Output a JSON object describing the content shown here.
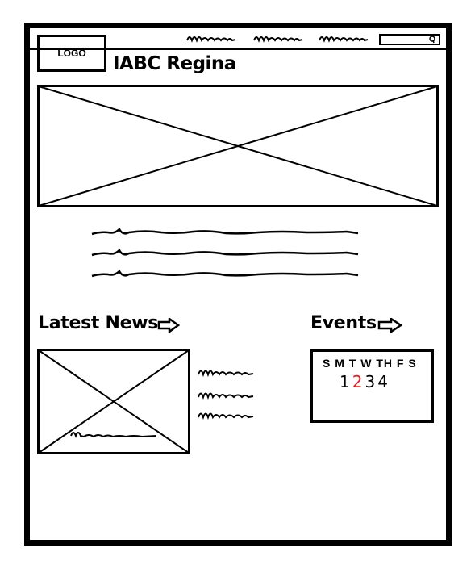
{
  "header": {
    "logo_label": "LOGO",
    "site_title": "IABC Regina",
    "nav_items": [
      "nav-link-1",
      "nav-link-2",
      "nav-link-3"
    ],
    "search_icon": "search-icon"
  },
  "hero": {
    "image": "image-placeholder"
  },
  "intro": {
    "lines": 3
  },
  "news": {
    "title": "Latest News",
    "arrow_icon": "arrow-right-icon",
    "links": 3
  },
  "events": {
    "title": "Events",
    "arrow_icon": "arrow-right-icon",
    "day_letters": "S M T W TH F S",
    "dates": [
      "1",
      "2",
      "3",
      "4"
    ],
    "highlight_color": "#e02020"
  }
}
